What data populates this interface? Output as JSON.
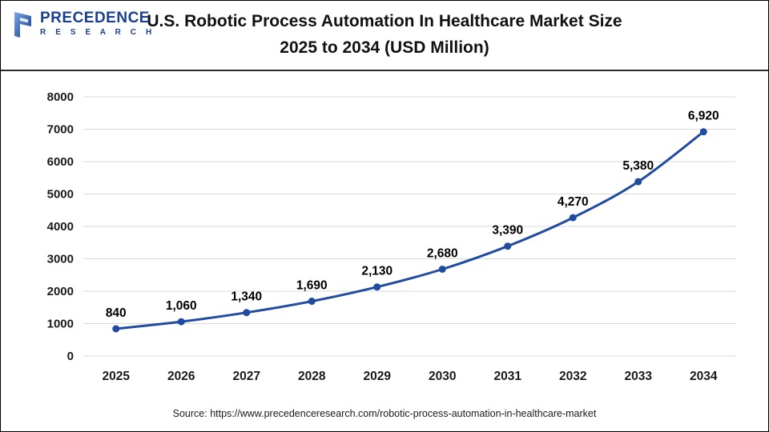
{
  "header": {
    "logo": {
      "name": "PRECEDENCE",
      "sub": "R E S E A R C H"
    },
    "title_lines": [
      "U.S. Robotic Process Automation In Healthcare Market Size",
      "2025 to 2034 (USD Million)"
    ]
  },
  "chart_data": {
    "type": "line",
    "categories": [
      "2025",
      "2026",
      "2027",
      "2028",
      "2029",
      "2030",
      "2031",
      "2032",
      "2033",
      "2034"
    ],
    "values": [
      840,
      1060,
      1340,
      1690,
      2130,
      2680,
      3390,
      4270,
      5380,
      6920
    ],
    "title": "U.S. Robotic Process Automation In Healthcare Market Size 2025 to 2034 (USD Million)",
    "xlabel": "",
    "ylabel": "",
    "ylim": [
      0,
      8000
    ],
    "ytick_step": 1000,
    "grid": true,
    "legend": "none",
    "line_color": "#1f4ba0",
    "marker_color": "#1f4ba0",
    "gridline_color": "#d9d9d9",
    "axis_label_color": "#1a1a1a",
    "data_label_color": "#000000"
  },
  "footer": {
    "source": "Source: https://www.precedenceresearch.com/robotic-process-automation-in-healthcare-market"
  }
}
